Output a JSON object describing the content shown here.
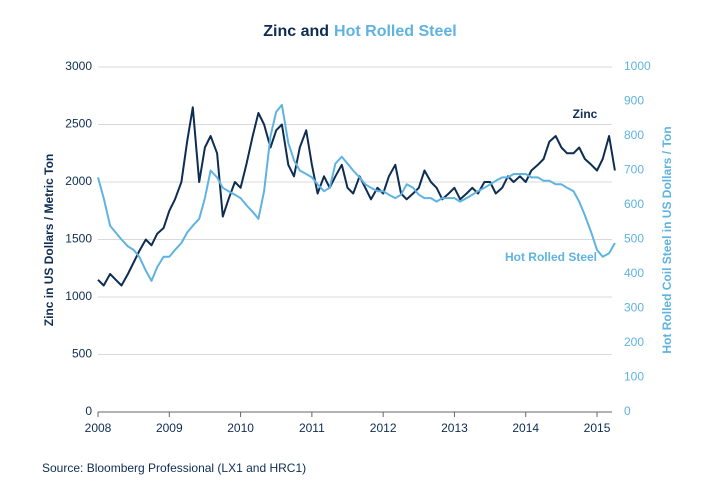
{
  "chart_data": {
    "type": "line",
    "title": [
      "Zinc and",
      "Hot Rolled Steel"
    ],
    "y_label": "Zinc in US Dollars / Metric Ton",
    "y2_label": "Hot Rolled Coil Steel in US Dollars / Ton",
    "source": "Source: Bloomberg Professional (LX1 and HRC1)",
    "x": [
      2008.0,
      2008.08,
      2008.17,
      2008.25,
      2008.33,
      2008.42,
      2008.5,
      2008.58,
      2008.67,
      2008.75,
      2008.83,
      2008.92,
      2009.0,
      2009.08,
      2009.17,
      2009.25,
      2009.33,
      2009.42,
      2009.5,
      2009.58,
      2009.67,
      2009.75,
      2009.83,
      2009.92,
      2010.0,
      2010.08,
      2010.17,
      2010.25,
      2010.33,
      2010.42,
      2010.5,
      2010.58,
      2010.67,
      2010.75,
      2010.83,
      2010.92,
      2011.0,
      2011.08,
      2011.17,
      2011.25,
      2011.33,
      2011.42,
      2011.5,
      2011.58,
      2011.67,
      2011.75,
      2011.83,
      2011.92,
      2012.0,
      2012.08,
      2012.17,
      2012.25,
      2012.33,
      2012.42,
      2012.5,
      2012.58,
      2012.67,
      2012.75,
      2012.83,
      2012.92,
      2013.0,
      2013.08,
      2013.17,
      2013.25,
      2013.33,
      2013.42,
      2013.5,
      2013.58,
      2013.67,
      2013.75,
      2013.83,
      2013.92,
      2014.0,
      2014.08,
      2014.17,
      2014.25,
      2014.33,
      2014.42,
      2014.5,
      2014.58,
      2014.67,
      2014.75,
      2014.83,
      2014.92,
      2015.0,
      2015.08,
      2015.17,
      2015.25
    ],
    "series": [
      {
        "name": "Zinc",
        "color": "#0e2d52",
        "values": [
          1150,
          1100,
          1200,
          1150,
          1100,
          1200,
          1300,
          1400,
          1500,
          1450,
          1550,
          1600,
          1750,
          1850,
          2000,
          2350,
          2650,
          2000,
          2300,
          2400,
          2250,
          1700,
          1850,
          2000,
          1950,
          2150,
          2400,
          2600,
          2500,
          2300,
          2450,
          2500,
          2150,
          2050,
          2300,
          2450,
          2150,
          1900,
          2050,
          1950,
          2050,
          2150,
          1950,
          1900,
          2050,
          1950,
          1850,
          1950,
          1900,
          2050,
          2150,
          1900,
          1850,
          1900,
          1950,
          2100,
          2000,
          1950,
          1850,
          1900,
          1950,
          1850,
          1900,
          1950,
          1900,
          2000,
          2000,
          1900,
          1950,
          2050,
          2000,
          2050,
          2000,
          2100,
          2150,
          2200,
          2350,
          2400,
          2300,
          2250,
          2250,
          2300,
          2200,
          2150,
          2100,
          2200,
          2400,
          2100
        ]
      },
      {
        "name": "Hot Rolled Steel",
        "color": "#5fb3e0",
        "axis": "y2",
        "values": [
          680,
          620,
          540,
          520,
          500,
          480,
          470,
          450,
          410,
          380,
          420,
          450,
          450,
          470,
          490,
          520,
          540,
          560,
          620,
          700,
          680,
          650,
          640,
          630,
          620,
          600,
          580,
          560,
          640,
          800,
          870,
          890,
          780,
          730,
          700,
          690,
          680,
          660,
          640,
          650,
          720,
          740,
          720,
          700,
          680,
          660,
          650,
          640,
          640,
          630,
          620,
          630,
          660,
          650,
          630,
          620,
          620,
          610,
          620,
          620,
          620,
          610,
          620,
          630,
          640,
          650,
          660,
          670,
          680,
          680,
          690,
          690,
          690,
          680,
          680,
          670,
          670,
          660,
          660,
          650,
          640,
          610,
          570,
          520,
          470,
          450,
          460,
          490
        ]
      }
    ],
    "xlim": [
      2008,
      2015.21
    ],
    "xticks": [
      2008,
      2009,
      2010,
      2011,
      2012,
      2013,
      2014,
      2015
    ],
    "ylim": [
      0,
      3000
    ],
    "yticks": [
      0,
      500,
      1000,
      1500,
      2000,
      2500,
      3000
    ],
    "y2lim": [
      0,
      1000
    ],
    "y2ticks": [
      0,
      100,
      200,
      300,
      400,
      500,
      600,
      700,
      800,
      900,
      1000
    ],
    "grid": true
  }
}
